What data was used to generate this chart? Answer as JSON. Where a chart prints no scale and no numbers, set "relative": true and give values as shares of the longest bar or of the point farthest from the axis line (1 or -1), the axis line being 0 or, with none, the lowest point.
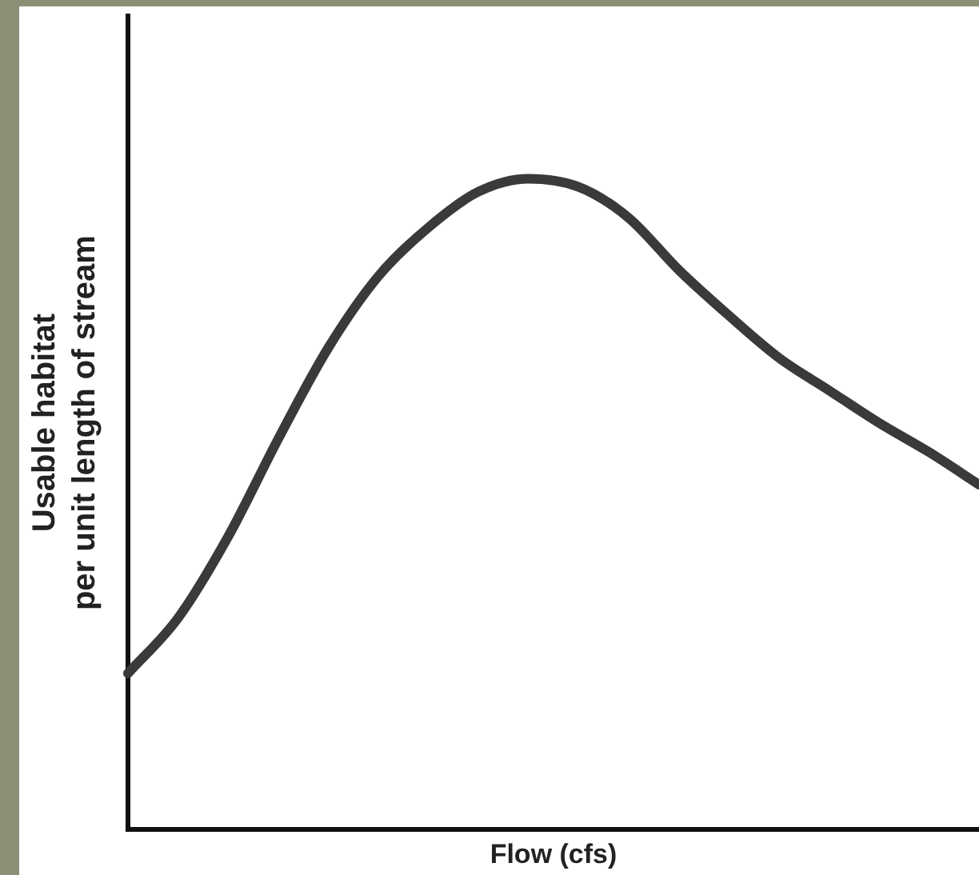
{
  "chart_data": {
    "type": "line",
    "relative": true,
    "xlabel": "Flow (cfs)",
    "ylabel": "Usable habitat\nper unit length of stream",
    "categories": [
      null,
      null,
      null,
      null,
      null,
      null,
      null,
      null,
      null,
      null,
      null,
      null,
      null,
      null,
      null,
      null,
      null,
      null
    ],
    "series": [
      {
        "color": "#3a3a3a",
        "values": [
          0.24,
          0.325,
          0.45,
          0.6,
          0.74,
          0.85,
          0.925,
          0.98,
          1.0,
          0.9875,
          0.94,
          0.86,
          0.79,
          0.725,
          0.675,
          0.625,
          0.58,
          0.53
        ]
      }
    ],
    "grid": false,
    "legend": false,
    "tick_labels": false,
    "marker": "none",
    "line_style": "solid"
  }
}
